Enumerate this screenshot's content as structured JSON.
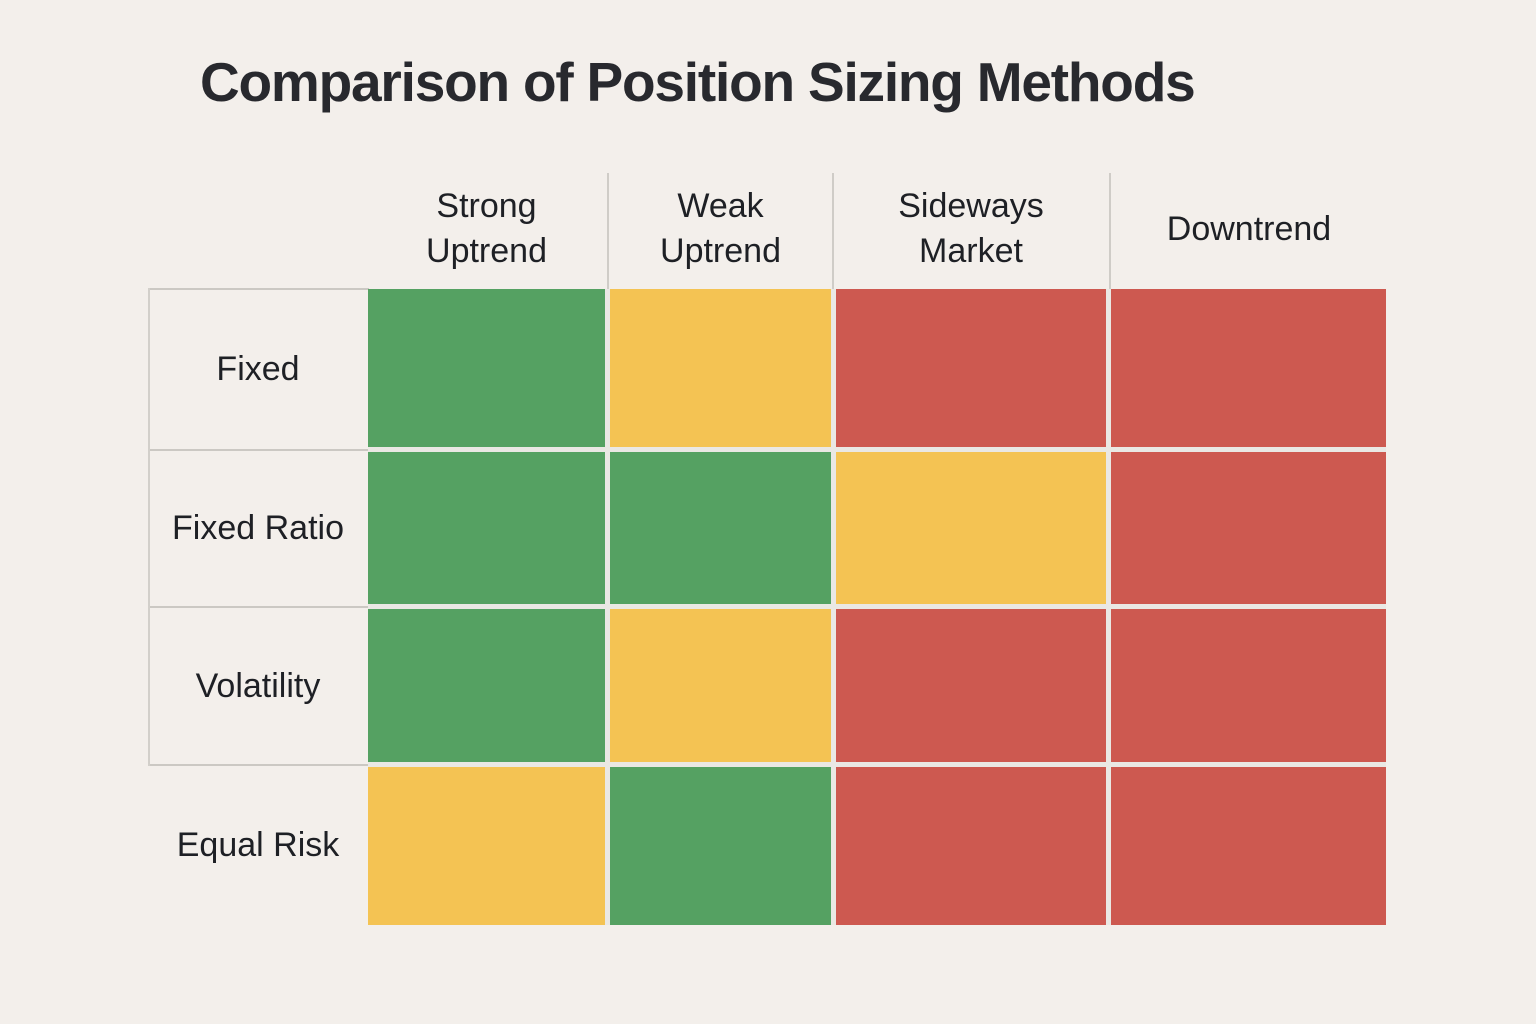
{
  "title": "Comparison of Position Sizing Methods",
  "columns": [
    "Strong Uptrend",
    "Weak Uptrend",
    "Sideways Market",
    "Downtrend"
  ],
  "rows": [
    "Fixed",
    "Fixed Ratio",
    "Volatility",
    "Equal Risk"
  ],
  "chart_data": {
    "type": "heatmap",
    "title": "Comparison of Position Sizing Methods",
    "x_categories": [
      "Strong Uptrend",
      "Weak Uptrend",
      "Sideways Market",
      "Downtrend"
    ],
    "y_categories": [
      "Fixed",
      "Fixed Ratio",
      "Volatility",
      "Equal Risk"
    ],
    "ratings": [
      [
        "good",
        "moderate",
        "poor",
        "poor"
      ],
      [
        "good",
        "good",
        "moderate",
        "poor"
      ],
      [
        "good",
        "moderate",
        "poor",
        "poor"
      ],
      [
        "moderate",
        "good",
        "poor",
        "poor"
      ]
    ],
    "color_scale": {
      "good": "#55a162",
      "moderate": "#f4c353",
      "poor": "#cd5950"
    },
    "legend": "none",
    "grid": "light-gray separators; no numeric axes"
  },
  "colors": {
    "background": "#f3efeb",
    "title_text": "#28292e",
    "label_text": "#1e2025",
    "grid_line": "#cbc8c3",
    "cell_gap": "#eae8e4",
    "green": "#55a162",
    "yellow": "#f4c353",
    "red": "#cd5950"
  }
}
